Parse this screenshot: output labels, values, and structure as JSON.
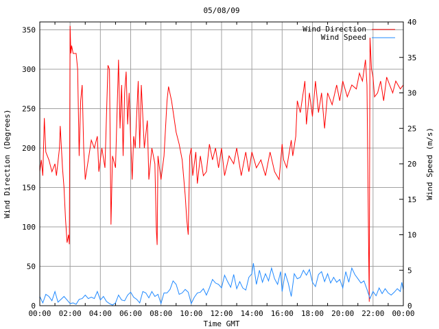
{
  "chart_data": {
    "type": "line",
    "title": "05/08/09",
    "xlabel": "Time GMT",
    "ylabel_left": "Wind Direction (Degrees)",
    "ylabel_right": "Wind Speed (m/s)",
    "xlim": [
      0,
      24
    ],
    "ylim_left": [
      0,
      360
    ],
    "ylim_right": [
      0,
      40
    ],
    "x_tick_labels": [
      "00:00",
      "02:00",
      "04:00",
      "06:00",
      "08:00",
      "10:00",
      "12:00",
      "14:00",
      "16:00",
      "18:00",
      "20:00",
      "22:00",
      "00:00"
    ],
    "y_ticks_left": [
      0,
      50,
      100,
      150,
      200,
      250,
      300,
      350
    ],
    "y_ticks_right": [
      0,
      5,
      10,
      15,
      20,
      25,
      30,
      35,
      40
    ],
    "grid": true,
    "legend_position": "top-right",
    "colors": {
      "direction": "#ff0000",
      "speed": "#1e88ff",
      "grid": "#a0a0a0"
    },
    "series": [
      {
        "name": "Wind Direction",
        "axis": "left",
        "color": "#ff0000",
        "x": [
          0,
          0.1,
          0.2,
          0.3,
          0.4,
          0.6,
          0.8,
          1.0,
          1.1,
          1.3,
          1.35,
          1.5,
          1.6,
          1.7,
          1.8,
          1.9,
          1.95,
          2.0,
          2.05,
          2.1,
          2.2,
          2.4,
          2.5,
          2.6,
          2.7,
          2.8,
          2.9,
          3.0,
          3.2,
          3.4,
          3.6,
          3.8,
          3.9,
          4.1,
          4.3,
          4.5,
          4.6,
          4.7,
          4.8,
          5.0,
          5.2,
          5.3,
          5.4,
          5.5,
          5.6,
          5.7,
          5.8,
          5.9,
          6.0,
          6.1,
          6.2,
          6.3,
          6.5,
          6.6,
          6.7,
          6.9,
          7.1,
          7.2,
          7.4,
          7.6,
          7.7,
          7.75,
          7.8,
          8.0,
          8.2,
          8.4,
          8.5,
          8.7,
          9.0,
          9.2,
          9.4,
          9.6,
          9.7,
          9.8,
          9.9,
          10.0,
          10.1,
          10.3,
          10.4,
          10.6,
          10.8,
          11.0,
          11.2,
          11.4,
          11.6,
          11.8,
          12.0,
          12.2,
          12.5,
          12.8,
          13.0,
          13.3,
          13.6,
          13.8,
          14.0,
          14.3,
          14.6,
          14.9,
          15.2,
          15.5,
          15.8,
          16.0,
          16.1,
          16.3,
          16.6,
          16.7,
          16.9,
          17.0,
          17.2,
          17.5,
          17.6,
          17.8,
          18.0,
          18.2,
          18.4,
          18.6,
          18.8,
          19.0,
          19.3,
          19.6,
          19.8,
          20.0,
          20.3,
          20.6,
          20.9,
          21.1,
          21.3,
          21.5,
          21.6,
          21.7,
          21.75,
          21.8,
          21.9,
          22.0,
          22.1,
          22.3,
          22.5,
          22.7,
          22.9,
          23.1,
          23.3,
          23.5,
          23.8,
          24.0
        ],
        "values": [
          170,
          185,
          165,
          238,
          195,
          185,
          170,
          180,
          165,
          200,
          228,
          175,
          150,
          110,
          80,
          90,
          78,
          355,
          320,
          330,
          320,
          320,
          300,
          190,
          260,
          280,
          200,
          160,
          185,
          210,
          200,
          215,
          170,
          200,
          175,
          305,
          300,
          103,
          190,
          175,
          312,
          225,
          280,
          190,
          270,
          297,
          230,
          270,
          210,
          160,
          215,
          200,
          285,
          200,
          280,
          200,
          235,
          160,
          200,
          180,
          95,
          77,
          190,
          160,
          190,
          260,
          278,
          260,
          220,
          205,
          185,
          140,
          110,
          90,
          190,
          200,
          165,
          195,
          155,
          190,
          165,
          170,
          205,
          185,
          200,
          175,
          200,
          165,
          190,
          180,
          200,
          165,
          195,
          170,
          195,
          175,
          185,
          165,
          195,
          170,
          160,
          205,
          185,
          175,
          210,
          190,
          215,
          260,
          245,
          285,
          230,
          270,
          240,
          285,
          245,
          270,
          225,
          270,
          255,
          280,
          260,
          285,
          265,
          280,
          275,
          295,
          285,
          312,
          280,
          90,
          5,
          340,
          300,
          290,
          265,
          270,
          285,
          260,
          290,
          280,
          270,
          285,
          275,
          280
        ]
      },
      {
        "name": "Wind Speed",
        "axis": "right",
        "color": "#1e88ff",
        "x": [
          0,
          0.2,
          0.4,
          0.6,
          0.8,
          1.0,
          1.2,
          1.4,
          1.6,
          1.8,
          2.0,
          2.2,
          2.4,
          2.6,
          2.8,
          3.0,
          3.2,
          3.4,
          3.6,
          3.8,
          4.0,
          4.2,
          4.4,
          4.6,
          4.8,
          5.0,
          5.2,
          5.4,
          5.6,
          5.8,
          6.0,
          6.2,
          6.4,
          6.6,
          6.8,
          7.0,
          7.2,
          7.4,
          7.6,
          7.8,
          8.0,
          8.2,
          8.4,
          8.6,
          8.8,
          9.0,
          9.2,
          9.4,
          9.6,
          9.8,
          10.0,
          10.2,
          10.4,
          10.6,
          10.8,
          11.0,
          11.2,
          11.4,
          11.6,
          11.8,
          12.0,
          12.2,
          12.4,
          12.6,
          12.8,
          13.0,
          13.2,
          13.4,
          13.6,
          13.8,
          14.0,
          14.1,
          14.3,
          14.5,
          14.7,
          14.9,
          15.1,
          15.3,
          15.5,
          15.7,
          15.9,
          16.0,
          16.2,
          16.4,
          16.6,
          16.8,
          17.0,
          17.2,
          17.4,
          17.6,
          17.8,
          18.0,
          18.2,
          18.4,
          18.6,
          18.8,
          19.0,
          19.2,
          19.4,
          19.6,
          19.8,
          20.0,
          20.2,
          20.4,
          20.6,
          20.8,
          21.0,
          21.2,
          21.4,
          21.6,
          21.8,
          22.0,
          22.2,
          22.4,
          22.6,
          22.8,
          23.0,
          23.2,
          23.4,
          23.6,
          23.8,
          23.9,
          24.0
        ],
        "values": [
          1.3,
          0.4,
          1.6,
          1.3,
          0.7,
          2.0,
          0.5,
          0.9,
          1.3,
          0.8,
          0.3,
          0.4,
          0.2,
          0.9,
          1.0,
          1.5,
          1.0,
          1.2,
          1.0,
          2.0,
          0.8,
          1.3,
          0.6,
          0.3,
          0.1,
          0.4,
          1.5,
          0.8,
          0.7,
          1.5,
          1.9,
          1.2,
          0.9,
          0.4,
          2.0,
          1.8,
          1.1,
          2.0,
          1.3,
          1.6,
          0.3,
          1.8,
          1.8,
          2.3,
          3.5,
          3.0,
          1.6,
          1.8,
          2.3,
          1.9,
          0.3,
          1.2,
          1.8,
          1.9,
          2.4,
          1.5,
          2.5,
          3.7,
          3.2,
          3.0,
          2.5,
          4.3,
          3.4,
          2.6,
          4.4,
          2.4,
          3.4,
          2.5,
          2.2,
          4.0,
          4.5,
          6.0,
          3.0,
          5.0,
          3.3,
          4.5,
          3.5,
          5.3,
          3.8,
          3.0,
          4.8,
          2.0,
          4.6,
          3.2,
          1.3,
          4.5,
          3.8,
          4.0,
          5.0,
          4.3,
          5.1,
          3.3,
          2.7,
          4.4,
          4.8,
          3.4,
          4.5,
          3.2,
          4.0,
          3.3,
          3.7,
          2.5,
          4.8,
          3.3,
          5.3,
          4.4,
          3.8,
          3.2,
          3.5,
          2.3,
          1.0,
          2.0,
          1.4,
          2.5,
          1.7,
          2.4,
          1.8,
          1.5,
          1.9,
          2.4,
          2.0,
          3.3,
          2.2
        ]
      }
    ]
  }
}
